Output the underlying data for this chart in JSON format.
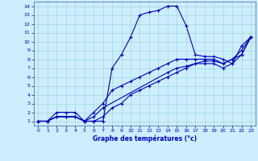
{
  "title": "Graphe des températures (°c)",
  "bg_color": "#cceeff",
  "line_color": "#0000bb",
  "marker": "+",
  "xlim": [
    -0.5,
    23.5
  ],
  "ylim": [
    0.5,
    14.5
  ],
  "xticks": [
    0,
    1,
    2,
    3,
    4,
    5,
    6,
    7,
    8,
    9,
    10,
    11,
    12,
    13,
    14,
    15,
    16,
    17,
    18,
    19,
    20,
    21,
    22,
    23
  ],
  "yticks": [
    1,
    2,
    3,
    4,
    5,
    6,
    7,
    8,
    9,
    10,
    11,
    12,
    13,
    14
  ],
  "curve1_x": [
    0,
    1,
    2,
    3,
    4,
    5,
    6,
    7,
    8,
    9,
    10,
    11,
    12,
    13,
    14,
    15,
    16,
    17,
    18,
    19,
    20,
    21,
    22,
    23
  ],
  "curve1_y": [
    1,
    1,
    2,
    2,
    2,
    1,
    1,
    1,
    7,
    8.5,
    10.5,
    13,
    13.3,
    13.5,
    14.0,
    14.0,
    11.8,
    8.5,
    8.3,
    8.3,
    8.0,
    7.5,
    9.5,
    10.5
  ],
  "curve2_x": [
    0,
    1,
    2,
    3,
    4,
    5,
    6,
    7,
    8,
    9,
    10,
    11,
    12,
    13,
    14,
    15,
    16,
    17,
    18,
    19,
    20,
    21,
    22,
    23
  ],
  "curve2_y": [
    1,
    1,
    1.5,
    1.5,
    1.5,
    1,
    1,
    1.5,
    2.5,
    3.0,
    4.0,
    4.5,
    5.0,
    5.5,
    6.0,
    6.5,
    7.0,
    7.5,
    7.5,
    7.5,
    7.0,
    7.5,
    8.5,
    10.5
  ],
  "curve3_x": [
    0,
    1,
    2,
    3,
    4,
    5,
    6,
    7,
    8,
    9,
    10,
    11,
    12,
    13,
    14,
    15,
    16,
    17,
    18,
    19,
    20,
    21,
    22,
    23
  ],
  "curve3_y": [
    1,
    1,
    1.5,
    1.5,
    1.5,
    1,
    2.0,
    3.0,
    4.5,
    5.0,
    5.5,
    6.0,
    6.5,
    7.0,
    7.5,
    8.0,
    8.0,
    8.0,
    8.0,
    8.0,
    7.5,
    8.0,
    9.0,
    10.5
  ],
  "curve4_x": [
    0,
    1,
    2,
    3,
    4,
    5,
    6,
    7,
    14,
    15,
    16,
    17,
    18,
    19,
    20,
    21,
    22,
    23
  ],
  "curve4_y": [
    1,
    1,
    1.5,
    1.5,
    1.5,
    1,
    1.5,
    2.5,
    6.5,
    7.0,
    7.2,
    7.5,
    7.8,
    7.8,
    7.5,
    8.0,
    8.5,
    10.5
  ]
}
